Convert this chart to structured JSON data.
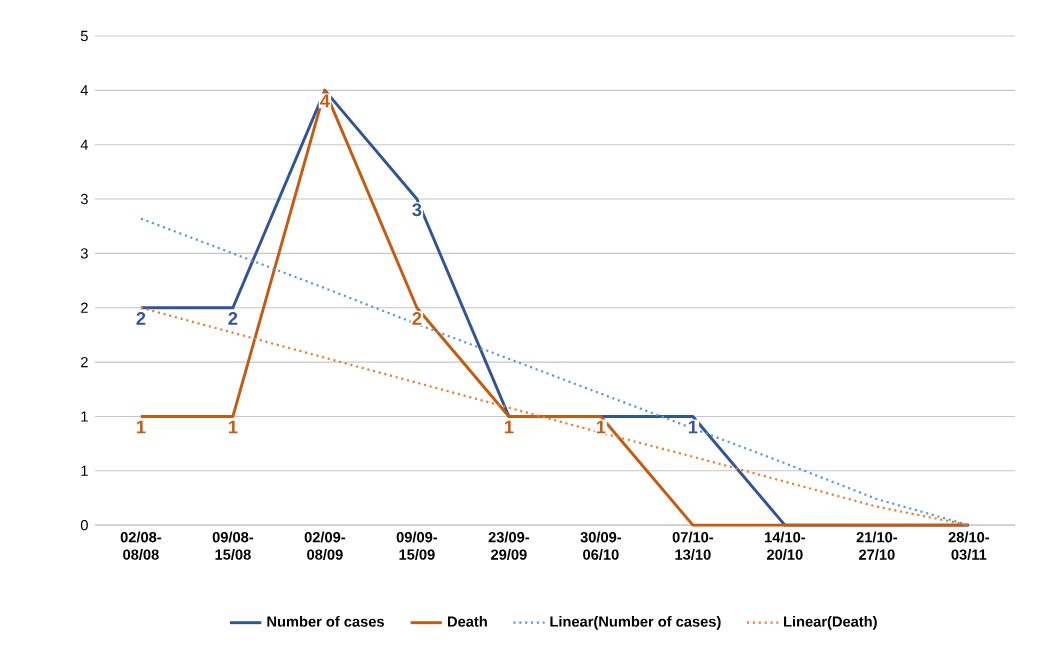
{
  "chart_data": {
    "type": "line",
    "categories": [
      "02/08-08/08",
      "09/08-15/08",
      "02/09-08/09",
      "09/09-15/09",
      "23/09-29/09",
      "30/09-06/10",
      "07/10-13/10",
      "14/10-20/10",
      "21/10-27/10",
      "28/10-03/11"
    ],
    "series": [
      {
        "name": "Number of cases",
        "color": "#2f5597",
        "values": [
          2,
          2,
          4,
          3,
          1,
          1,
          1,
          0,
          0,
          0
        ],
        "value_labels": [
          "2",
          "2",
          null,
          "3",
          null,
          null,
          "1",
          null,
          null,
          null
        ]
      },
      {
        "name": "Death",
        "color": "#c55a11",
        "values": [
          1,
          1,
          4,
          2,
          1,
          1,
          0,
          0,
          0,
          0
        ],
        "value_labels": [
          "1",
          "1",
          "4",
          "2",
          "1",
          "1",
          null,
          null,
          null,
          null
        ]
      },
      {
        "name": "Linear(Number of cases)",
        "color": "#5b9bd5",
        "line_style": "dotted",
        "values": [
          2.82,
          2.5,
          2.18,
          1.85,
          1.53,
          1.21,
          0.89,
          0.57,
          0.24,
          0
        ]
      },
      {
        "name": "Linear(Death)",
        "color": "#ed7d31",
        "line_style": "dotted",
        "values": [
          2.0,
          1.77,
          1.54,
          1.31,
          1.08,
          0.85,
          0.63,
          0.4,
          0.17,
          0
        ]
      }
    ],
    "ylim": [
      0,
      4.5
    ],
    "yticks": [
      0,
      {
        "value": 0.5,
        "label": "1"
      },
      1,
      {
        "value": 1.5,
        "label": "2"
      },
      2,
      {
        "value": 2.5,
        "label": "3"
      },
      3,
      {
        "value": 3.5,
        "label": "4"
      },
      4,
      {
        "value": 4.5,
        "label": "5"
      }
    ],
    "grid": "y",
    "legend": "bottom",
    "marker": "none"
  }
}
